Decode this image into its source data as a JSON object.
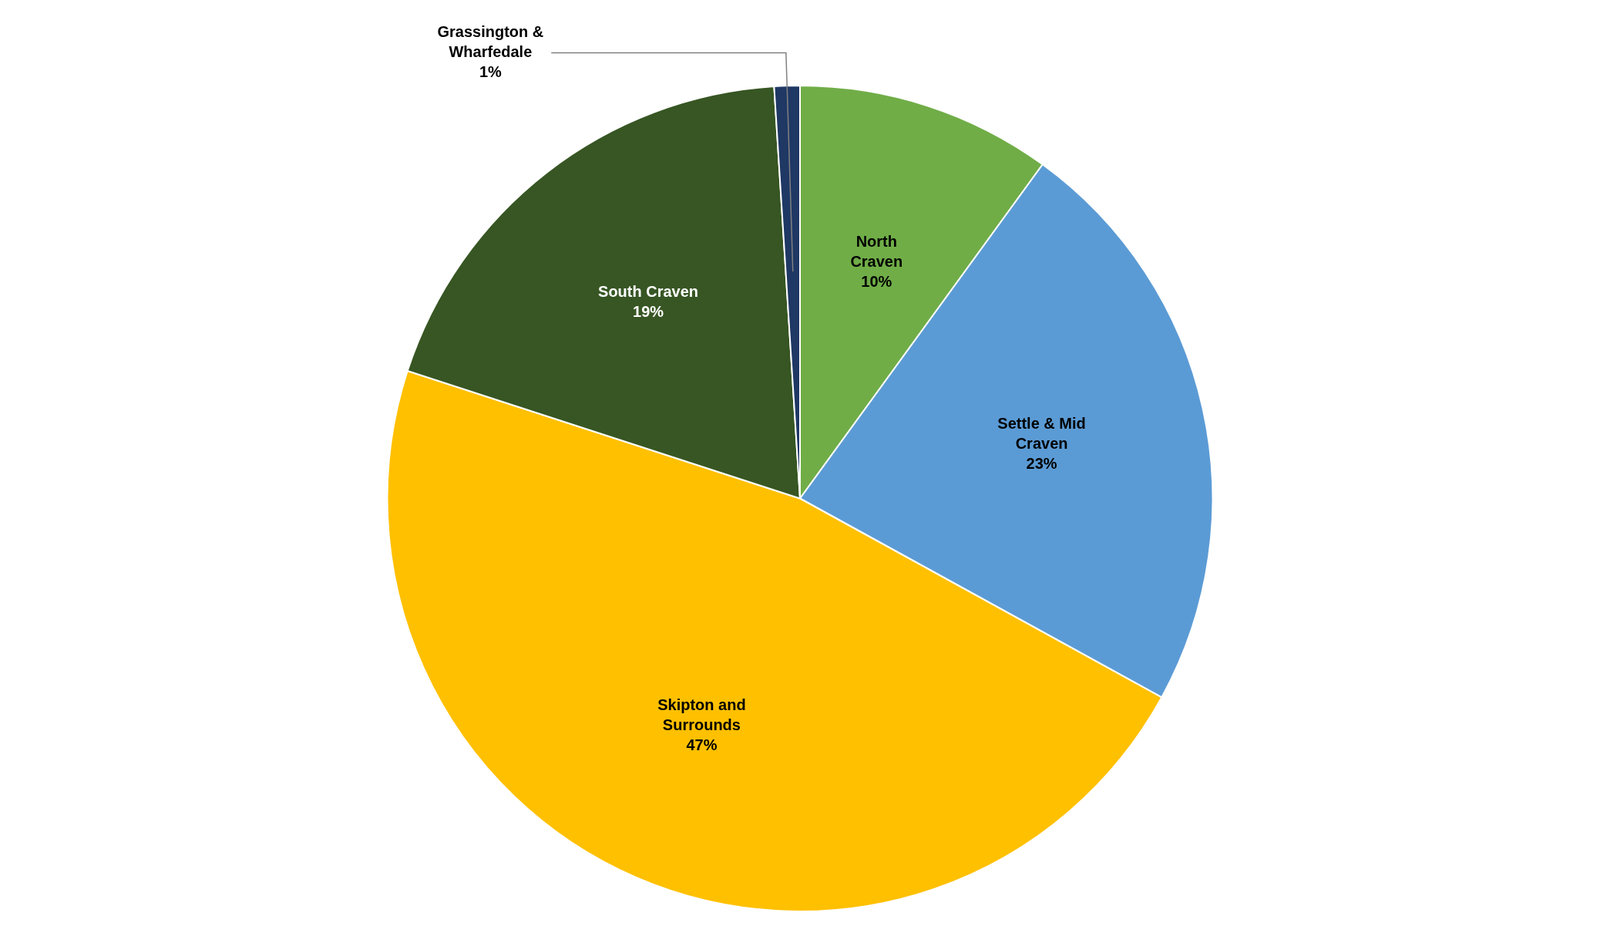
{
  "chart_data": {
    "type": "pie",
    "categories": [
      "North\nCraven\n10%",
      "Settle & Mid\nCraven\n23%",
      "Skipton and\nSurrounds\n47%",
      "South Craven\n19%",
      "Grassington &\nWharfedale\n1%"
    ],
    "values": [
      10,
      23,
      47,
      19,
      1
    ],
    "colors": [
      "#70AD47",
      "#5B9BD5",
      "#FFC000",
      "#375623",
      "#1F3864"
    ]
  }
}
